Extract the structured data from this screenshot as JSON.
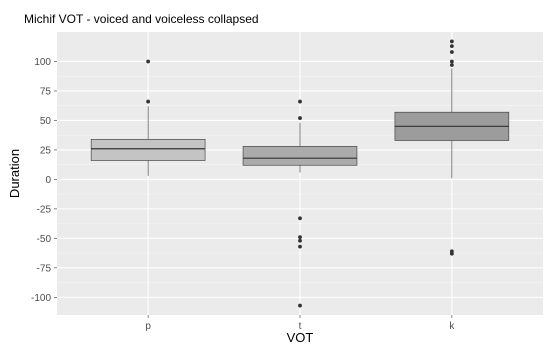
{
  "chart_data": {
    "type": "boxplot",
    "title": "Michif VOT - voiced and voiceless collapsed",
    "xlabel": "VOT",
    "ylabel": "Duration",
    "categories": [
      "p",
      "t",
      "k"
    ],
    "ylim": [
      -115,
      125
    ],
    "yticks": [
      100,
      75,
      50,
      25,
      0,
      -25,
      -50,
      -75,
      -100
    ],
    "ytick_labels": [
      "100",
      "75",
      "50",
      "25",
      "0",
      "-25",
      "-50",
      "-75",
      "-100"
    ],
    "grid": true,
    "boxes": [
      {
        "category": "p",
        "whisker_low": 3,
        "q1": 16,
        "median": 26,
        "q3": 34,
        "whisker_high": 62,
        "outliers": [
          66,
          100
        ],
        "fill": "#c4c4c4"
      },
      {
        "category": "t",
        "whisker_low": 6,
        "q1": 12,
        "median": 18,
        "q3": 28,
        "whisker_high": 48,
        "outliers": [
          66,
          52,
          -33,
          -49,
          -52,
          -57,
          -107
        ],
        "fill": "#ababab"
      },
      {
        "category": "k",
        "whisker_low": 1,
        "q1": 33,
        "median": 45,
        "q3": 57,
        "whisker_high": 94,
        "outliers": [
          117,
          113,
          108,
          100,
          97,
          -61,
          -63
        ],
        "fill": "#9c9c9c"
      }
    ],
    "colors": {
      "panel": "#ebebeb",
      "grid_major": "#ffffff",
      "grid_minor": "#f5f5f5",
      "box_line": "#333333",
      "outlier": "#333333",
      "tick_text": "#4d4d4d",
      "title_text": "#000000"
    }
  }
}
